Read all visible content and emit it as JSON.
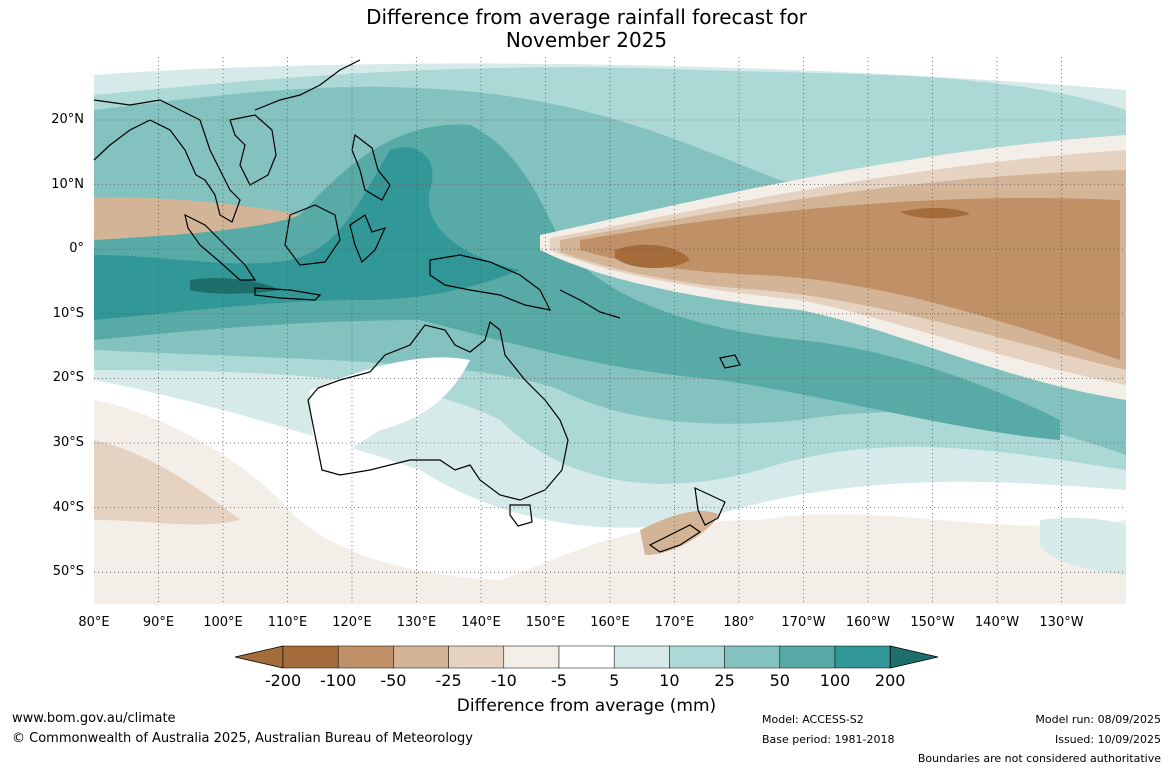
{
  "title": {
    "line1": "Difference from average rainfall forecast for",
    "line2": "November 2025"
  },
  "axes": {
    "lat_labels": [
      "20°N",
      "10°N",
      "0°",
      "10°S",
      "20°S",
      "30°S",
      "40°S",
      "50°S"
    ],
    "lon_labels": [
      "80°E",
      "90°E",
      "100°E",
      "110°E",
      "120°E",
      "130°E",
      "140°E",
      "150°E",
      "160°E",
      "170°E",
      "180°",
      "170°W",
      "160°W",
      "150°W",
      "140°W",
      "130°W"
    ],
    "lat_range": [
      "30°N",
      "55°S"
    ],
    "lon_range": [
      "80°E",
      "120°W"
    ],
    "grid": true
  },
  "colorbar": {
    "title": "Difference from average (mm)",
    "labels": [
      "-200",
      "-100",
      "-50",
      "-25",
      "-10",
      "-5",
      "5",
      "10",
      "25",
      "50",
      "100",
      "200"
    ],
    "colors": [
      "#a46c3a",
      "#c09167",
      "#d3b496",
      "#e5d2c1",
      "#f3eee8",
      "#ffffff",
      "#d6ebe9",
      "#acd8d5",
      "#84c2bf",
      "#58aaa7",
      "#319897",
      "#1e6f6b"
    ]
  },
  "map_layers": [
    {
      "name": "dry-band-equatorial-pacific",
      "level": "-100 to -200",
      "color": "#a46c3a"
    },
    {
      "name": "wet-band-indian-ocean",
      "level": "50 to 100",
      "color": "#319897"
    },
    {
      "name": "wet-maritime-continent",
      "level": "25 to 100",
      "color": "#58aaa7"
    }
  ],
  "footer": {
    "website": "www.bom.gov.au/climate",
    "copyright": "© Commonwealth of Australia 2025, Australian Bureau of Meteorology",
    "model": "Model: ACCESS-S2",
    "base_period": "Base period: 1981-2018",
    "model_run": "Model run: 08/09/2025",
    "issued": "Issued: 10/09/2025",
    "disclaimer": "Boundaries are not considered authoritative"
  }
}
